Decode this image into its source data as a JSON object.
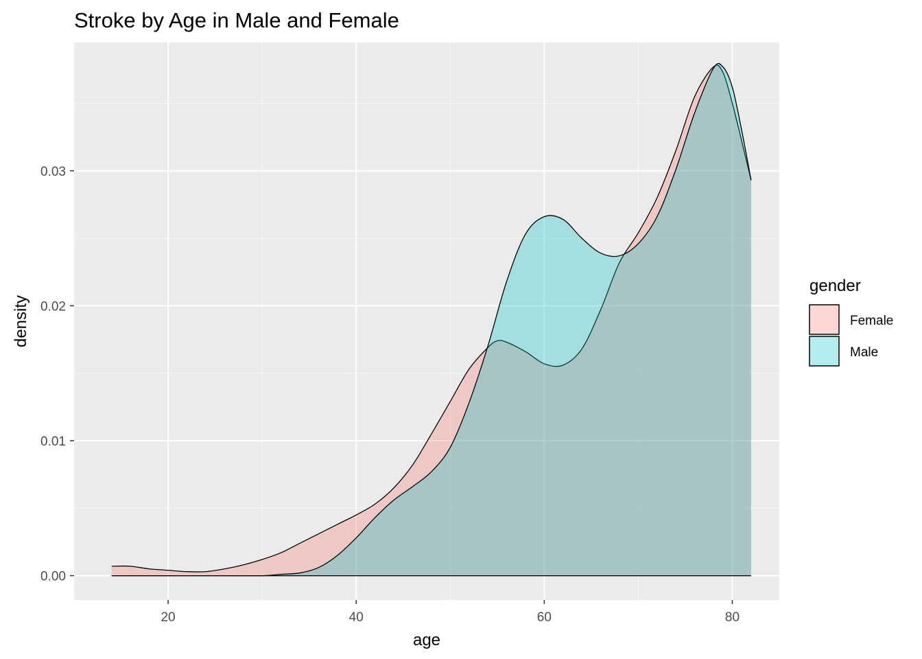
{
  "chart_data": {
    "type": "area",
    "title": "Stroke by Age in Male and Female",
    "xlabel": "age",
    "ylabel": "density",
    "xlim": [
      10,
      85
    ],
    "ylim": [
      -0.0018,
      0.0395
    ],
    "x_ticks": [
      20,
      40,
      60,
      80
    ],
    "x_tick_labels": [
      "20",
      "40",
      "60",
      "80"
    ],
    "y_ticks": [
      0.0,
      0.01,
      0.02,
      0.03
    ],
    "y_tick_labels": [
      "0.00",
      "0.01",
      "0.02",
      "0.03"
    ],
    "grid": true,
    "legend": {
      "title": "gender",
      "position": "right"
    },
    "series": [
      {
        "name": "Female",
        "fill": "#F8766D",
        "points": [
          [
            14,
            0.0007
          ],
          [
            16,
            0.0007
          ],
          [
            18,
            0.0005
          ],
          [
            20,
            0.0004
          ],
          [
            22,
            0.0003
          ],
          [
            24,
            0.0003
          ],
          [
            26,
            0.0005
          ],
          [
            28,
            0.0008
          ],
          [
            30,
            0.0012
          ],
          [
            32,
            0.0017
          ],
          [
            34,
            0.0024
          ],
          [
            36,
            0.0031
          ],
          [
            38,
            0.0038
          ],
          [
            40,
            0.0045
          ],
          [
            42,
            0.0053
          ],
          [
            44,
            0.0065
          ],
          [
            46,
            0.0082
          ],
          [
            48,
            0.0105
          ],
          [
            50,
            0.0129
          ],
          [
            52,
            0.0153
          ],
          [
            54,
            0.0169
          ],
          [
            55,
            0.0174
          ],
          [
            56,
            0.0173
          ],
          [
            58,
            0.0166
          ],
          [
            60,
            0.0157
          ],
          [
            62,
            0.0156
          ],
          [
            64,
            0.0168
          ],
          [
            66,
            0.0197
          ],
          [
            68,
            0.0232
          ],
          [
            70,
            0.0254
          ],
          [
            72,
            0.028
          ],
          [
            74,
            0.0315
          ],
          [
            76,
            0.0355
          ],
          [
            78,
            0.0377
          ],
          [
            79,
            0.0373
          ],
          [
            80,
            0.035
          ],
          [
            81,
            0.0322
          ],
          [
            82,
            0.0293
          ]
        ]
      },
      {
        "name": "Male",
        "fill": "#00BFC4",
        "points": [
          [
            14,
            0.0
          ],
          [
            20,
            0.0
          ],
          [
            26,
            0.0
          ],
          [
            30,
            0.0
          ],
          [
            32,
            0.0001
          ],
          [
            34,
            0.0002
          ],
          [
            36,
            0.0006
          ],
          [
            38,
            0.0015
          ],
          [
            40,
            0.0028
          ],
          [
            42,
            0.0043
          ],
          [
            44,
            0.0056
          ],
          [
            46,
            0.0066
          ],
          [
            48,
            0.0077
          ],
          [
            50,
            0.0095
          ],
          [
            52,
            0.0128
          ],
          [
            54,
            0.017
          ],
          [
            56,
            0.0218
          ],
          [
            58,
            0.0253
          ],
          [
            60,
            0.0266
          ],
          [
            62,
            0.0264
          ],
          [
            64,
            0.025
          ],
          [
            66,
            0.0239
          ],
          [
            68,
            0.0237
          ],
          [
            70,
            0.0246
          ],
          [
            72,
            0.0266
          ],
          [
            74,
            0.0301
          ],
          [
            76,
            0.0343
          ],
          [
            78,
            0.0376
          ],
          [
            79,
            0.0377
          ],
          [
            80,
            0.0362
          ],
          [
            81,
            0.033
          ],
          [
            82,
            0.0293
          ]
        ]
      }
    ]
  }
}
